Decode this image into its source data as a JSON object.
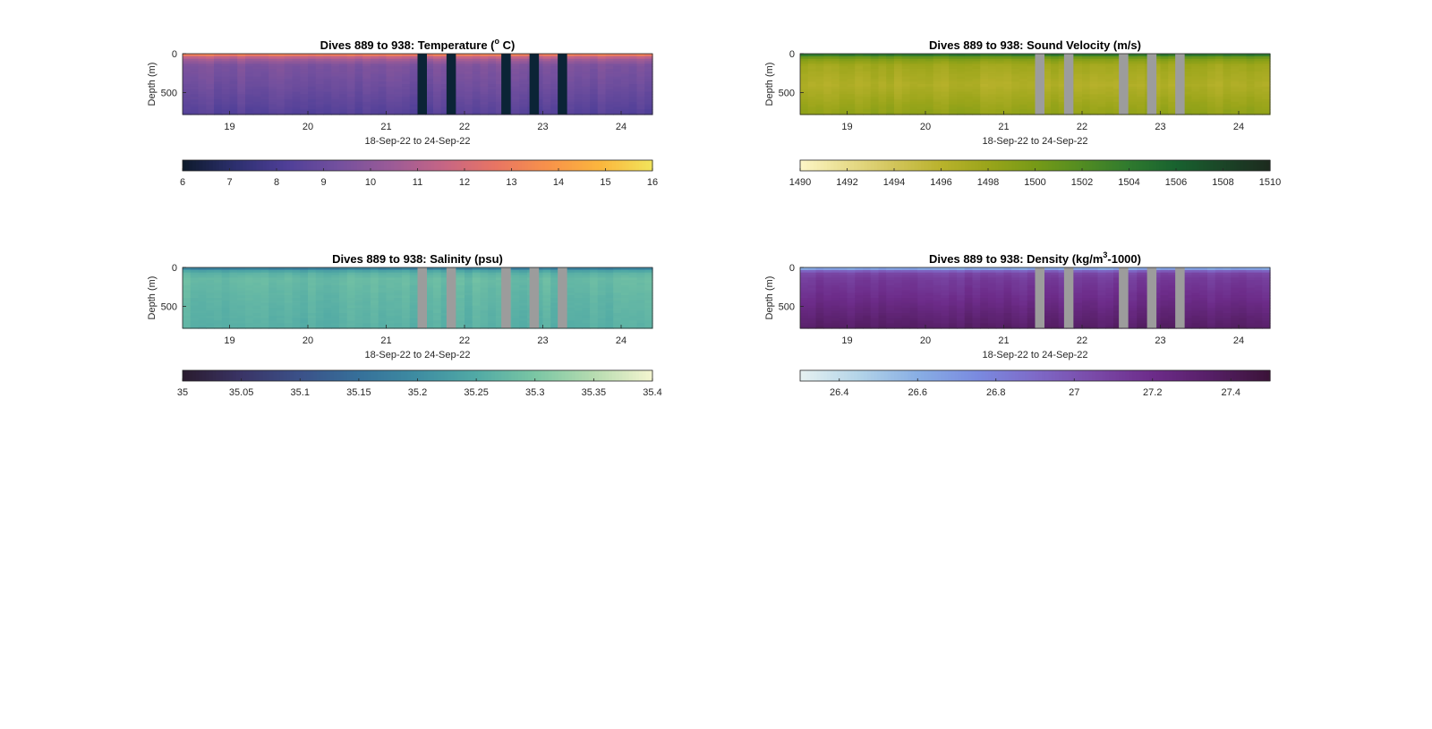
{
  "figure": {
    "background": "#ffffff"
  },
  "chart_data": [
    {
      "type": "heatmap",
      "title": "Dives 889 to 938: Temperature (",
      "title_sup": "o",
      "title_tail": " C)",
      "xlabel": "18-Sep-22 to 24-Sep-22",
      "ylabel": "Depth (m)",
      "xlim": [
        18.4,
        24.4
      ],
      "ylim": [
        780,
        0
      ],
      "x_ticks": [
        "19",
        "20",
        "21",
        "22",
        "23",
        "24"
      ],
      "y_ticks": [
        "0",
        "500"
      ],
      "gap_color": "#0b2436",
      "gaps": [
        [
          21.4,
          21.52
        ],
        [
          21.77,
          21.89
        ],
        [
          22.47,
          22.59
        ],
        [
          22.83,
          22.95
        ],
        [
          23.19,
          23.31
        ]
      ],
      "profile": {
        "stops": [
          0,
          20,
          60,
          150,
          400,
          780
        ],
        "values": [
          13.5,
          12.8,
          10.8,
          9.6,
          9.2,
          8.4
        ]
      },
      "colorbar": {
        "ticks": [
          "6",
          "7",
          "8",
          "9",
          "10",
          "11",
          "12",
          "13",
          "14",
          "15",
          "16"
        ],
        "range": [
          6,
          16
        ],
        "colors": [
          "#0d1a2b",
          "#2c2f6e",
          "#4f3f98",
          "#74509e",
          "#9b5b97",
          "#c66585",
          "#e87563",
          "#f8924a",
          "#fbb63d",
          "#f2e55b"
        ]
      }
    },
    {
      "type": "heatmap",
      "title": "Dives 889 to 938: Sound Velocity (m/s)",
      "xlabel": "18-Sep-22 to 24-Sep-22",
      "ylabel": "Depth (m)",
      "xlim": [
        18.4,
        24.4
      ],
      "ylim": [
        780,
        0
      ],
      "x_ticks": [
        "19",
        "20",
        "21",
        "22",
        "23",
        "24"
      ],
      "y_ticks": [
        "0",
        "500"
      ],
      "gap_color": "#9c9c9c",
      "gaps": [
        [
          21.4,
          21.52
        ],
        [
          21.77,
          21.89
        ],
        [
          22.47,
          22.59
        ],
        [
          22.83,
          22.95
        ],
        [
          23.19,
          23.31
        ]
      ],
      "profile": {
        "stops": [
          0,
          20,
          60,
          150,
          400,
          780
        ],
        "values": [
          1505.5,
          1503.5,
          1499.5,
          1497.5,
          1496.5,
          1498.5
        ]
      },
      "colorbar": {
        "ticks": [
          "1490",
          "1492",
          "1494",
          "1496",
          "1498",
          "1500",
          "1502",
          "1504",
          "1506",
          "1508",
          "1510"
        ],
        "range": [
          1490,
          1510
        ],
        "colors": [
          "#fdf7c7",
          "#e8dc8c",
          "#d2c55a",
          "#b9b22c",
          "#9aa51a",
          "#779a17",
          "#528c22",
          "#2f7a2e",
          "#18622f",
          "#1b4527",
          "#1c2a1e"
        ]
      }
    },
    {
      "type": "heatmap",
      "title": "Dives 889 to 938: Salinity (psu)",
      "xlabel": "18-Sep-22 to 24-Sep-22",
      "ylabel": "Depth (m)",
      "xlim": [
        18.4,
        24.4
      ],
      "ylim": [
        780,
        0
      ],
      "x_ticks": [
        "19",
        "20",
        "21",
        "22",
        "23",
        "24"
      ],
      "y_ticks": [
        "0",
        "500"
      ],
      "gap_color": "#9c9c9c",
      "gaps": [
        [
          21.4,
          21.52
        ],
        [
          21.77,
          21.89
        ],
        [
          22.47,
          22.59
        ],
        [
          22.83,
          22.95
        ],
        [
          23.19,
          23.31
        ]
      ],
      "profile": {
        "stops": [
          0,
          20,
          60,
          150,
          400,
          780
        ],
        "values": [
          35.12,
          35.2,
          35.26,
          35.28,
          35.27,
          35.26
        ]
      },
      "colorbar": {
        "ticks": [
          "35",
          "35.05",
          "35.1",
          "35.15",
          "35.2",
          "35.25",
          "35.3",
          "35.35",
          "35.4"
        ],
        "range": [
          35,
          35.4
        ],
        "colors": [
          "#2a1b2e",
          "#3a3466",
          "#3b5189",
          "#36709a",
          "#3e8da2",
          "#51aaa5",
          "#7ac6a4",
          "#b6dcb0",
          "#f4f5d0"
        ]
      }
    },
    {
      "type": "heatmap",
      "title": "Dives 889 to 938: Density (kg/m",
      "title_sup": "3",
      "title_tail": "-1000)",
      "xlabel": "18-Sep-22 to 24-Sep-22",
      "ylabel": "Depth (m)",
      "xlim": [
        18.4,
        24.4
      ],
      "ylim": [
        780,
        0
      ],
      "x_ticks": [
        "19",
        "20",
        "21",
        "22",
        "23",
        "24"
      ],
      "y_ticks": [
        "0",
        "500"
      ],
      "gap_color": "#9c9c9c",
      "gaps": [
        [
          21.4,
          21.52
        ],
        [
          21.77,
          21.89
        ],
        [
          22.47,
          22.59
        ],
        [
          22.83,
          22.95
        ],
        [
          23.19,
          23.31
        ]
      ],
      "profile": {
        "stops": [
          0,
          20,
          60,
          150,
          400,
          780
        ],
        "values": [
          26.35,
          26.7,
          27.05,
          27.12,
          27.2,
          27.35
        ]
      },
      "colorbar": {
        "ticks": [
          "26.4",
          "26.6",
          "26.8",
          "27",
          "27.2",
          "27.4"
        ],
        "range": [
          26.3,
          27.5
        ],
        "colors": [
          "#e6f1f1",
          "#b3d4e8",
          "#88aee4",
          "#7a8be0",
          "#7e6ac8",
          "#7a4aa8",
          "#6d2c8a",
          "#561f66",
          "#3b1338"
        ]
      }
    }
  ]
}
